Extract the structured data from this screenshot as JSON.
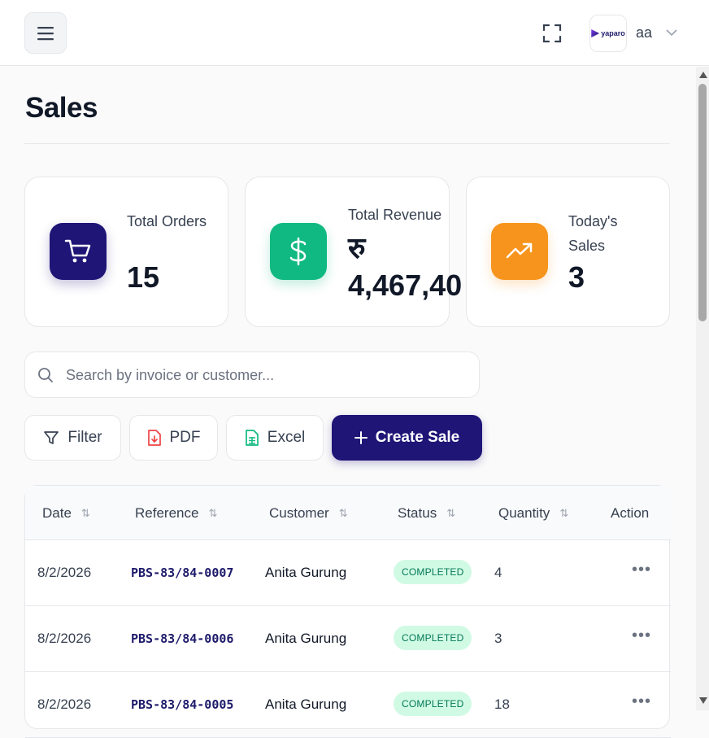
{
  "header": {
    "user_name": "aa",
    "logo_text": "yaparo"
  },
  "page": {
    "title": "Sales"
  },
  "stats": [
    {
      "label": "Total Orders",
      "value": "15",
      "color": "#1e1577",
      "icon": "cart-icon"
    },
    {
      "label": "Total Revenue",
      "value": "रु 4,467,40",
      "color": "#10b981",
      "icon": "dollar-icon"
    },
    {
      "label": "Today's Sales",
      "value": "3",
      "color": "#f7941d",
      "icon": "trending-up-icon"
    }
  ],
  "search": {
    "placeholder": "Search by invoice or customer..."
  },
  "toolbar": {
    "filter_label": "Filter",
    "pdf_label": "PDF",
    "excel_label": "Excel",
    "create_label": "Create Sale"
  },
  "table": {
    "headers": [
      "Date",
      "Reference",
      "Customer",
      "Status",
      "Quantity",
      "Action"
    ],
    "rows": [
      {
        "date": "8/2/2026",
        "reference": "PBS-83/84-0007",
        "customer": "Anita Gurung",
        "status": "COMPLETED",
        "quantity": "4"
      },
      {
        "date": "8/2/2026",
        "reference": "PBS-83/84-0006",
        "customer": "Anita Gurung",
        "status": "COMPLETED",
        "quantity": "3"
      },
      {
        "date": "8/2/2026",
        "reference": "PBS-83/84-0005",
        "customer": "Anita Gurung",
        "status": "COMPLETED",
        "quantity": "18"
      }
    ]
  },
  "colors": {
    "primary": "#1e1577",
    "success": "#10b981",
    "warning": "#f7941d",
    "badge_bg": "#d1fae5",
    "badge_text": "#047857"
  }
}
